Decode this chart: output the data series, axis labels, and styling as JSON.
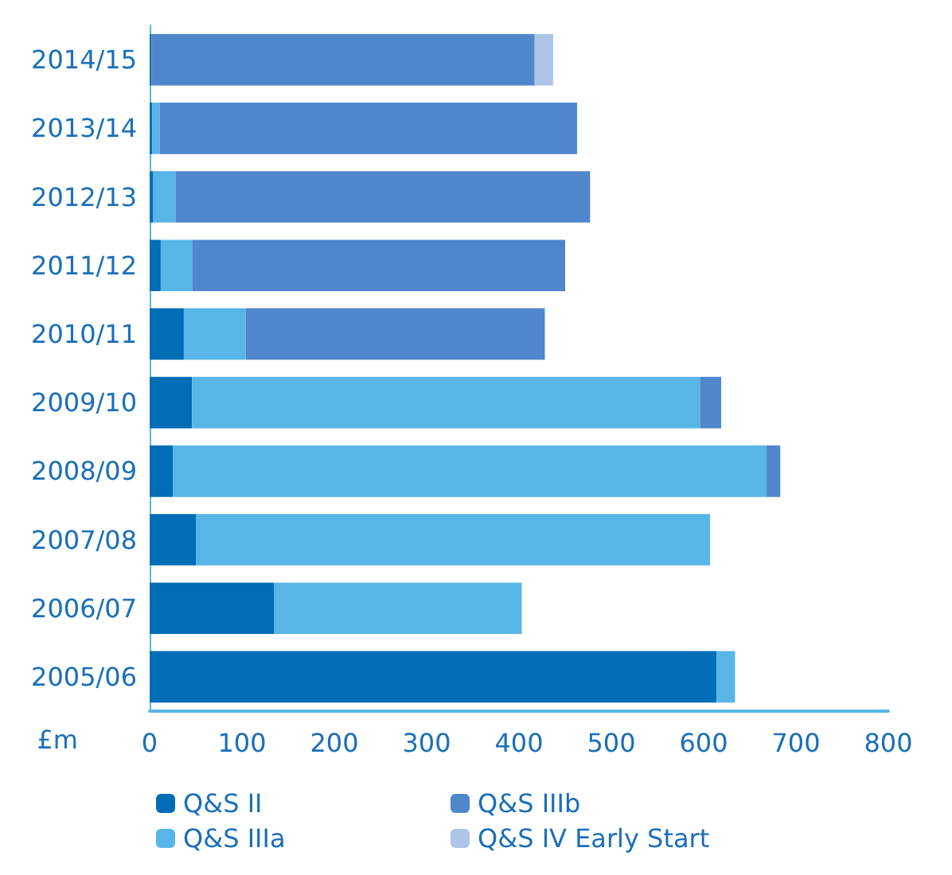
{
  "chart_data": {
    "type": "bar",
    "orientation": "horizontal",
    "stacked": true,
    "xlabel": "£m",
    "categories": [
      "2014/15",
      "2013/14",
      "2012/13",
      "2011/12",
      "2010/11",
      "2009/10",
      "2008/09",
      "2007/08",
      "2006/07",
      "2005/06"
    ],
    "series": [
      {
        "name": "Q&S II",
        "color": "#006db6",
        "values": [
          2,
          3,
          4,
          12,
          37,
          46,
          25,
          50,
          135,
          614
        ]
      },
      {
        "name": "Q&S IIIa",
        "color": "#57b5e7",
        "values": [
          0,
          8,
          24,
          34,
          67,
          550,
          643,
          557,
          268,
          20
        ]
      },
      {
        "name": "Q&S IIIb",
        "color": "#4f86cc",
        "values": [
          415,
          452,
          449,
          404,
          324,
          23,
          15,
          0,
          0,
          0
        ]
      },
      {
        "name": "Q&S IV Early Start",
        "color": "#adc4e6",
        "values": [
          20,
          0,
          0,
          0,
          0,
          0,
          0,
          0,
          0,
          0
        ]
      }
    ],
    "xlim": [
      0,
      800
    ],
    "xticks": [
      0,
      100,
      200,
      300,
      400,
      500,
      600,
      700,
      800
    ],
    "grid": false,
    "legend": "bottom"
  }
}
